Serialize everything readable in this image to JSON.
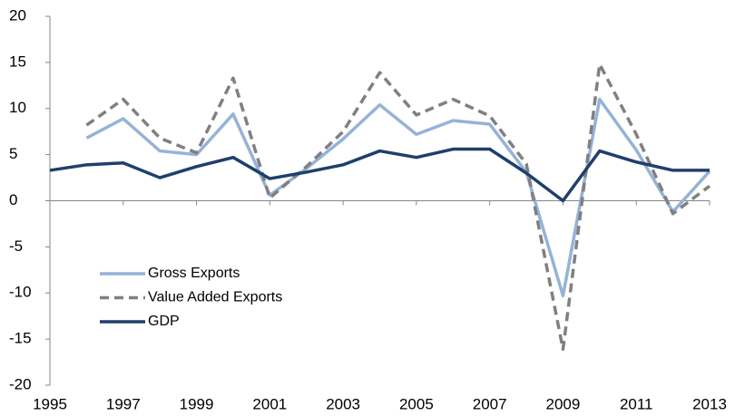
{
  "chart_data": {
    "type": "line",
    "x": [
      1995,
      1996,
      1997,
      1998,
      1999,
      2000,
      2001,
      2002,
      2003,
      2004,
      2005,
      2006,
      2007,
      2008,
      2009,
      2010,
      2011,
      2012,
      2013
    ],
    "series": [
      {
        "name": "Gross Exports",
        "color": "#95b3d7",
        "dash": false,
        "values": [
          null,
          6.8,
          8.9,
          5.4,
          5.0,
          9.4,
          0.6,
          3.5,
          6.7,
          10.4,
          7.2,
          8.7,
          8.3,
          3.1,
          -10.3,
          11.0,
          5.5,
          -1.2,
          3.2
        ]
      },
      {
        "name": "Value Added Exports",
        "color": "#808080",
        "dash": true,
        "values": [
          null,
          8.2,
          11.0,
          6.8,
          5.2,
          13.3,
          0.3,
          3.7,
          7.5,
          13.9,
          9.3,
          11.0,
          9.2,
          4.0,
          -16.1,
          14.8,
          7.2,
          -1.4,
          1.6
        ]
      },
      {
        "name": "GDP",
        "color": "#1f3f6c",
        "dash": false,
        "values": [
          3.3,
          3.9,
          4.1,
          2.5,
          3.7,
          4.7,
          2.4,
          3.1,
          3.9,
          5.4,
          4.7,
          5.6,
          5.6,
          3.0,
          0.0,
          5.4,
          4.2,
          3.3,
          3.3
        ]
      }
    ],
    "xlim": [
      1995,
      2013
    ],
    "xticks": [
      1995,
      1997,
      1999,
      2001,
      2003,
      2005,
      2007,
      2009,
      2011,
      2013
    ],
    "ylim": [
      -20,
      20
    ],
    "yticks": [
      -20,
      -15,
      -10,
      -5,
      0,
      5,
      10,
      15,
      20
    ],
    "grid": false,
    "legend": "lower left"
  }
}
